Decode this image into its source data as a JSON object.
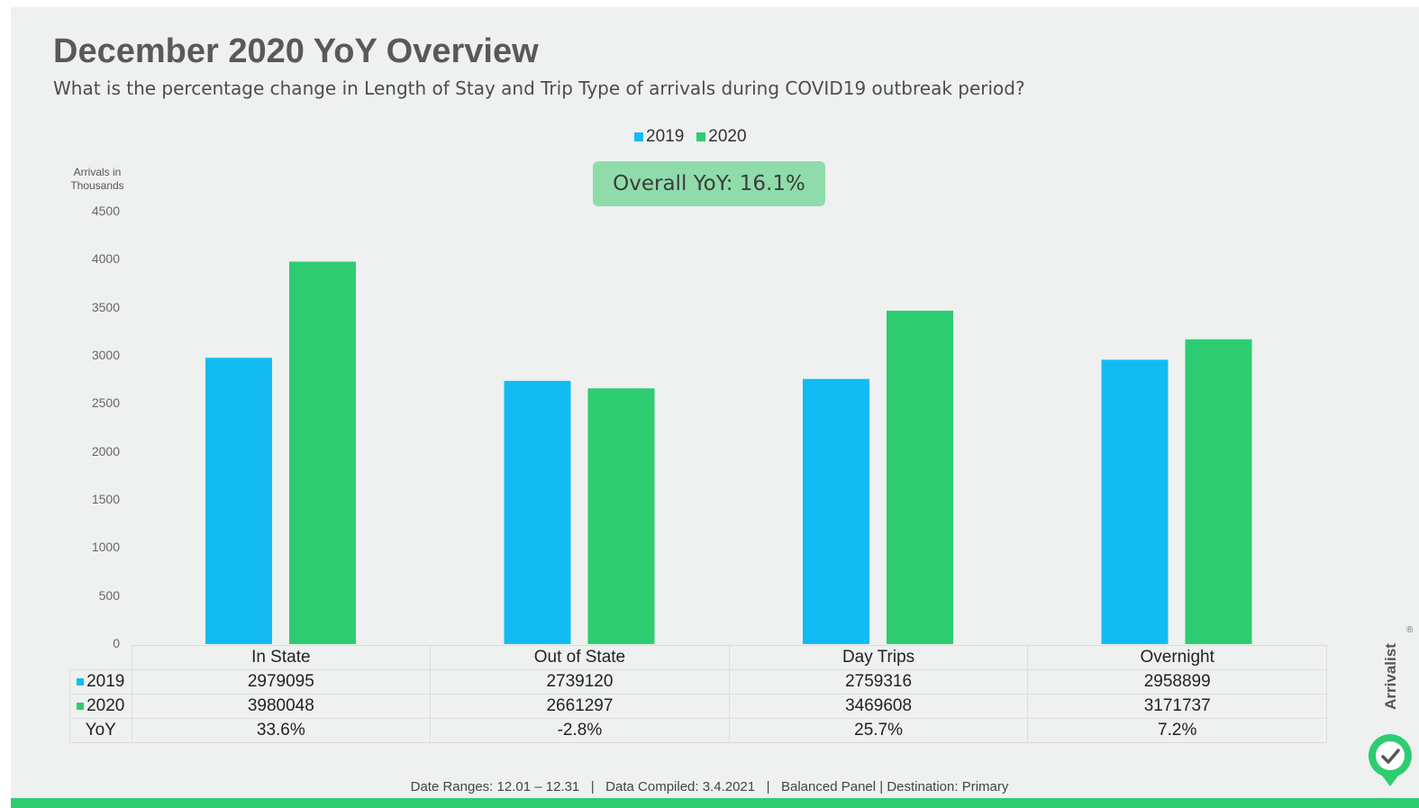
{
  "title": "December 2020 YoY Overview",
  "subtitle": "What is the percentage change in Length of Stay and Trip Type of arrivals during COVID19 outbreak period?",
  "overall_yoy": "Overall YoY: 16.1%",
  "footer": "Date Ranges: 12.01 – 12.31   |   Data Compiled: 3.4.2021   |   Balanced Panel | Destination: Primary",
  "brand": {
    "name": "Arrivalist",
    "reg": "®"
  },
  "colors": {
    "series_2019": "#12bcf2",
    "series_2020": "#2ecc71"
  },
  "table": {
    "row_labels": [
      "2019",
      "2020",
      "YoY"
    ],
    "yoy": [
      "33.6%",
      "-2.8%",
      "25.7%",
      "7.2%"
    ]
  },
  "chart_data": {
    "type": "bar",
    "title": "December 2020 YoY Overview",
    "ylabel": "Arrivals in Thousands",
    "xlabel": "",
    "categories": [
      "In State",
      "Out of State",
      "Day Trips",
      "Overnight"
    ],
    "series": [
      {
        "name": "2019",
        "values": [
          2979095,
          2739120,
          2759316,
          2958899
        ],
        "display": [
          "2979095",
          "2739120",
          "2759316",
          "2958899"
        ]
      },
      {
        "name": "2020",
        "values": [
          3980048,
          2661297,
          3469608,
          3171737
        ],
        "display": [
          "3980048",
          "2661297",
          "3469608",
          "3171737"
        ]
      }
    ],
    "ylim": [
      0,
      4500
    ],
    "yticks": [
      "0",
      "500",
      "1000",
      "1500",
      "2000",
      "2500",
      "3000",
      "3500",
      "4000",
      "4500"
    ],
    "legend": "top-center",
    "grid": false
  }
}
